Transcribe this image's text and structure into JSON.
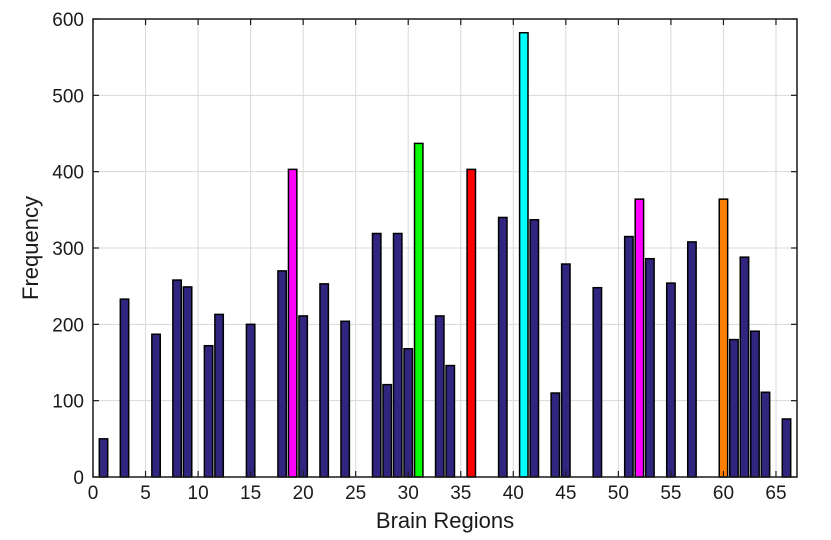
{
  "chart_data": {
    "type": "bar",
    "xlabel": "Brain Regions",
    "ylabel": "Frequency",
    "xlim": [
      0,
      67
    ],
    "ylim": [
      0,
      600
    ],
    "xticks": [
      0,
      5,
      10,
      15,
      20,
      25,
      30,
      35,
      40,
      45,
      50,
      55,
      60,
      65
    ],
    "yticks": [
      0,
      100,
      200,
      300,
      400,
      500,
      600
    ],
    "grid": true,
    "default_color": "#302680",
    "series": [
      {
        "bars": [
          {
            "x": 1,
            "value": 50
          },
          {
            "x": 3,
            "value": 233
          },
          {
            "x": 6,
            "value": 187
          },
          {
            "x": 8,
            "value": 258
          },
          {
            "x": 9,
            "value": 249
          },
          {
            "x": 11,
            "value": 172
          },
          {
            "x": 12,
            "value": 213
          },
          {
            "x": 15,
            "value": 200
          },
          {
            "x": 18,
            "value": 270
          },
          {
            "x": 19,
            "value": 403,
            "color": "#ff00ff"
          },
          {
            "x": 20,
            "value": 211
          },
          {
            "x": 22,
            "value": 253
          },
          {
            "x": 24,
            "value": 204
          },
          {
            "x": 27,
            "value": 319
          },
          {
            "x": 28,
            "value": 121
          },
          {
            "x": 29,
            "value": 319
          },
          {
            "x": 30,
            "value": 168
          },
          {
            "x": 31,
            "value": 437,
            "color": "#00ff00"
          },
          {
            "x": 33,
            "value": 211
          },
          {
            "x": 34,
            "value": 146
          },
          {
            "x": 36,
            "value": 403,
            "color": "#ff0000"
          },
          {
            "x": 39,
            "value": 340
          },
          {
            "x": 41,
            "value": 582,
            "color": "#00ffff"
          },
          {
            "x": 42,
            "value": 337
          },
          {
            "x": 44,
            "value": 110
          },
          {
            "x": 45,
            "value": 279
          },
          {
            "x": 48,
            "value": 248
          },
          {
            "x": 51,
            "value": 315
          },
          {
            "x": 52,
            "value": 364,
            "color": "#ff00ff"
          },
          {
            "x": 53,
            "value": 286
          },
          {
            "x": 55,
            "value": 254
          },
          {
            "x": 57,
            "value": 308
          },
          {
            "x": 60,
            "value": 364,
            "color": "#ff8000"
          },
          {
            "x": 61,
            "value": 180
          },
          {
            "x": 62,
            "value": 288
          },
          {
            "x": 63,
            "value": 191
          },
          {
            "x": 64,
            "value": 111
          },
          {
            "x": 66,
            "value": 76
          }
        ]
      }
    ]
  }
}
